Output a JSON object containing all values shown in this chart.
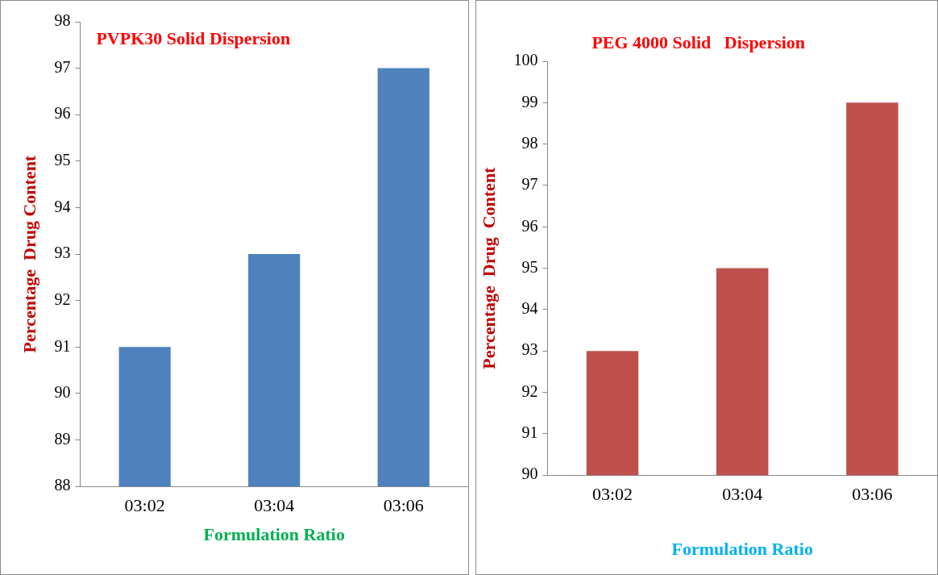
{
  "chart_data": [
    {
      "type": "bar",
      "title": "PVPK30 Solid Dispersion",
      "xlabel": "Formulation Ratio",
      "ylabel": "Percentage  Drug Content",
      "categories": [
        "03:02",
        "03:04",
        "03:06"
      ],
      "values": [
        91,
        93,
        97
      ],
      "color": "#4f81bd",
      "ylim": [
        88,
        98
      ],
      "yticks": [
        88,
        89,
        90,
        91,
        92,
        93,
        94,
        95,
        96,
        97,
        98
      ],
      "grid": false,
      "legend": false
    },
    {
      "type": "bar",
      "title": "PEG 4000 Solid   Dispersion",
      "xlabel": "Formulation Ratio",
      "ylabel": "Percentage  Drug  Content",
      "categories": [
        "03:02",
        "03:04",
        "03:06"
      ],
      "values": [
        93,
        95,
        99
      ],
      "color": "#c0504d",
      "ylim": [
        90,
        100
      ],
      "yticks": [
        90,
        91,
        92,
        93,
        94,
        95,
        96,
        97,
        98,
        99,
        100
      ],
      "grid": false,
      "legend": false
    }
  ]
}
